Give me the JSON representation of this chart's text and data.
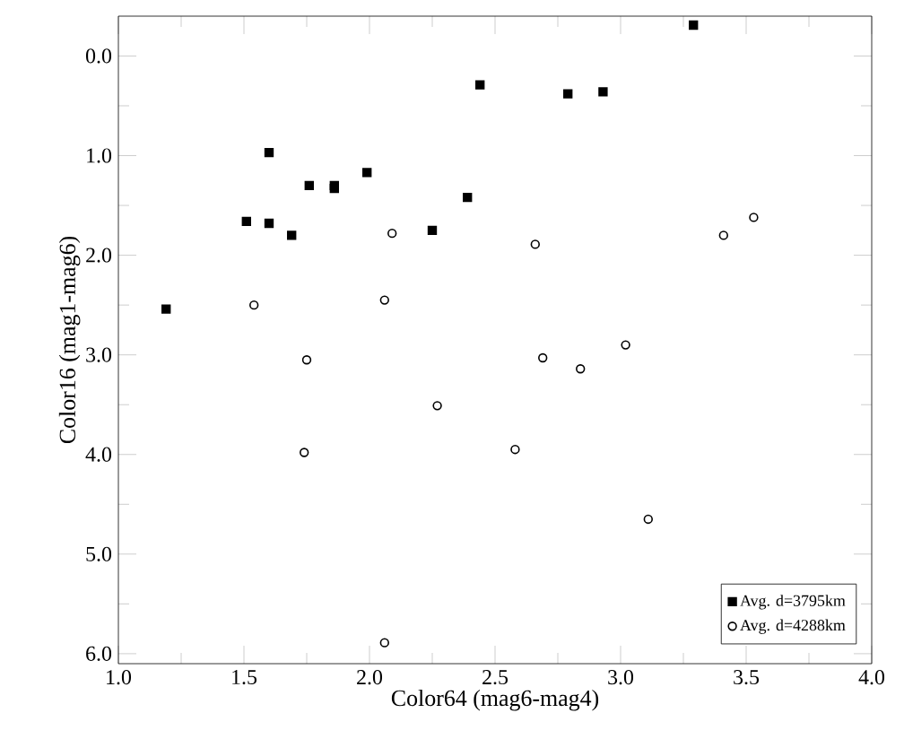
{
  "chart_data": {
    "type": "scatter",
    "xlabel": "Color64 (mag6-mag4)",
    "ylabel": "Color16 (mag1-mag6)",
    "xlim": [
      1.0,
      4.0
    ],
    "ylim": [
      6.1,
      -0.4
    ],
    "xticks": [
      {
        "value": 1,
        "label": "1.0"
      },
      1.5,
      {
        "value": 2,
        "label": "2.0"
      },
      2.5,
      {
        "value": 3,
        "label": "3.0"
      },
      3.5,
      {
        "value": 4,
        "label": "4.0"
      }
    ],
    "yticks": [
      {
        "value": 0,
        "label": "0.0"
      },
      {
        "value": 1,
        "label": "1.0"
      },
      {
        "value": 2,
        "label": "2.0"
      },
      {
        "value": 3,
        "label": "3.0"
      },
      {
        "value": 4,
        "label": "4.0"
      },
      {
        "value": 5,
        "label": "5.0"
      },
      {
        "value": 6,
        "label": "6.0"
      }
    ],
    "grid": false,
    "legend": "bottom right",
    "series": [
      {
        "name": "Avg. d=3795km",
        "color": "#000000",
        "marker": "square",
        "x": [
          1.19,
          1.51,
          1.6,
          1.6,
          1.69,
          1.76,
          1.86,
          1.86,
          1.99,
          2.25,
          2.39,
          2.44,
          2.79,
          2.93,
          3.29
        ],
        "values": [
          2.54,
          1.66,
          1.68,
          0.97,
          1.8,
          1.3,
          1.3,
          1.33,
          1.17,
          1.75,
          1.42,
          0.29,
          0.38,
          0.36,
          -0.31
        ]
      },
      {
        "name": "Avg. d=4288km",
        "color": "#000000",
        "marker": "circle",
        "x": [
          1.54,
          1.75,
          1.74,
          2.06,
          2.09,
          2.06,
          2.27,
          2.58,
          2.66,
          2.69,
          2.84,
          3.02,
          3.11,
          3.41,
          3.53
        ],
        "values": [
          2.5,
          3.05,
          3.98,
          2.45,
          1.78,
          5.89,
          3.51,
          3.95,
          1.89,
          3.03,
          3.14,
          2.9,
          4.65,
          1.8,
          1.62
        ]
      }
    ]
  }
}
